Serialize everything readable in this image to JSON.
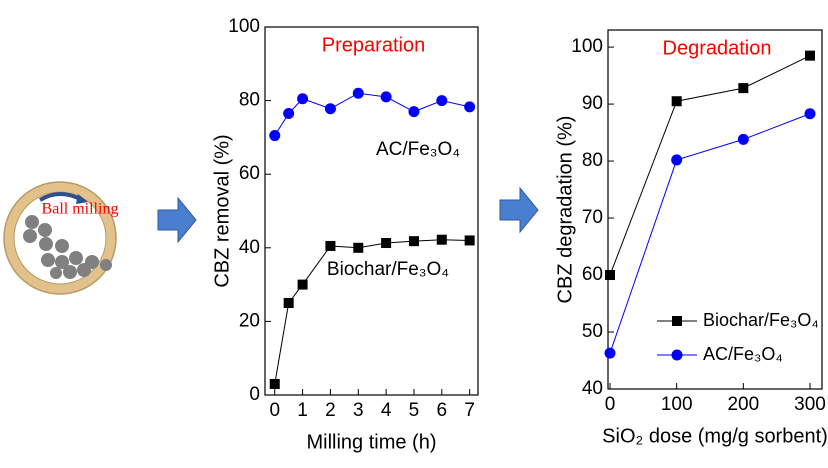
{
  "diagram": {
    "label": "Ball milling"
  },
  "chart_data": [
    {
      "type": "line",
      "title": "Preparation",
      "x_label": "Milling time (h)",
      "y_label": "CBZ removal (%)",
      "x": [
        0,
        0.5,
        1,
        2,
        3,
        4,
        5,
        6,
        7
      ],
      "series": [
        {
          "name": "AC/Fe₃O₄",
          "color": "#0000ff",
          "marker": "circle",
          "values": [
            70.5,
            76.5,
            80.5,
            77.8,
            82,
            81,
            77,
            80,
            78.3
          ]
        },
        {
          "name": "Biochar/Fe₃O₄",
          "color": "#000000",
          "marker": "square",
          "values": [
            3,
            25,
            30,
            40.5,
            40,
            41.3,
            41.8,
            42.2,
            42
          ]
        }
      ],
      "annotations": [
        "AC/Fe₃O₄",
        "Biochar/Fe₃O₄"
      ],
      "xlim": [
        -0.35,
        7.3
      ],
      "xticks": [
        0,
        1,
        2,
        3,
        4,
        5,
        6,
        7
      ],
      "ylim": [
        0,
        100
      ],
      "yticks": [
        0,
        20,
        40,
        60,
        80,
        100
      ]
    },
    {
      "type": "line",
      "title": "Degradation",
      "x_label": "SiO₂ dose (mg/g sorbent)",
      "y_label": "CBZ degradation (%)",
      "x": [
        0,
        100,
        200,
        300
      ],
      "series": [
        {
          "name": "Biochar/Fe₃O₄",
          "color": "#000000",
          "marker": "square",
          "values": [
            60,
            90.5,
            92.8,
            98.5
          ]
        },
        {
          "name": "AC/Fe₃O₄",
          "color": "#0000ff",
          "marker": "circle",
          "values": [
            46.3,
            80.2,
            83.8,
            88.3
          ]
        }
      ],
      "legend": "lower right",
      "xlim": [
        -3,
        318
      ],
      "xticks": [
        0,
        100,
        200,
        300
      ],
      "ylim": [
        40,
        103
      ],
      "yticks": [
        40,
        50,
        60,
        70,
        80,
        90,
        100
      ]
    }
  ]
}
